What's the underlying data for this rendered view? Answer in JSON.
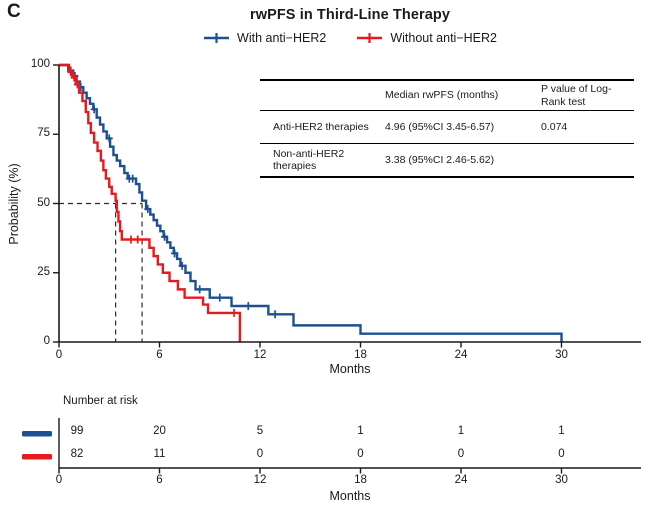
{
  "panel_label": "C",
  "title": "rwPFS in Third-Line Therapy",
  "legend": [
    {
      "label": "With anti−HER2",
      "color": "#1d5093"
    },
    {
      "label": "Without anti−HER2",
      "color": "#e8191e"
    }
  ],
  "y_axis_title": "Probability (%)",
  "x_axis_title": "Months",
  "inset_table": {
    "headers": [
      "",
      "Median rwPFS (months)",
      "P value of Log-Rank test"
    ],
    "rows": [
      [
        "Anti-HER2 therapies",
        "4.96 (95%CI 3.45-6.57)",
        "0.074"
      ],
      [
        "Non-anti-HER2 therapies",
        "3.38 (95%CI 2.46-5.62)",
        ""
      ]
    ]
  },
  "risk_table": {
    "title": "Number at risk",
    "rows": [
      {
        "name": "With anti−HER2",
        "color": "#1d5093",
        "counts": [
          "99",
          "20",
          "5",
          "1",
          "1",
          "1"
        ]
      },
      {
        "name": "Without anti−HER2",
        "color": "#e8191e",
        "counts": [
          "82",
          "11",
          "0",
          "0",
          "0",
          "0"
        ]
      }
    ]
  },
  "chart_data": {
    "type": "line",
    "subtype": "kaplan-meier-step",
    "title": "rwPFS in Third-Line Therapy",
    "xlabel": "Months",
    "ylabel": "Probability (%)",
    "xlim": [
      0,
      34.7
    ],
    "ylim": [
      0,
      100
    ],
    "xticks": [
      0,
      6,
      12,
      18,
      24,
      30
    ],
    "yticks": [
      0,
      25,
      50,
      75,
      100
    ],
    "grid": false,
    "legend_position": "top-center",
    "median_lines": {
      "y": 50,
      "x_values": [
        3.38,
        4.96
      ]
    },
    "p_value_logrank": "0.074",
    "series": [
      {
        "name": "With anti−HER2",
        "color": "#1d5093",
        "median_months": "4.96 (95%CI 3.45-6.57)",
        "steps": [
          [
            0,
            100
          ],
          [
            0.55,
            98
          ],
          [
            0.85,
            96
          ],
          [
            1.05,
            94
          ],
          [
            1.25,
            92
          ],
          [
            1.45,
            90
          ],
          [
            1.65,
            88
          ],
          [
            1.85,
            86
          ],
          [
            2.05,
            84
          ],
          [
            2.25,
            81
          ],
          [
            2.45,
            78.5
          ],
          [
            2.65,
            76
          ],
          [
            2.85,
            73.5
          ],
          [
            3.05,
            70.5
          ],
          [
            3.25,
            67.5
          ],
          [
            3.45,
            65.5
          ],
          [
            3.65,
            63.5
          ],
          [
            3.9,
            61
          ],
          [
            4.1,
            59
          ],
          [
            4.6,
            57
          ],
          [
            4.8,
            54
          ],
          [
            4.96,
            51
          ],
          [
            5.2,
            48
          ],
          [
            5.45,
            46
          ],
          [
            5.65,
            44
          ],
          [
            5.85,
            42
          ],
          [
            6.05,
            40
          ],
          [
            6.25,
            38
          ],
          [
            6.45,
            36
          ],
          [
            6.65,
            34
          ],
          [
            6.85,
            32
          ],
          [
            7.05,
            30
          ],
          [
            7.25,
            27.5
          ],
          [
            7.55,
            25
          ],
          [
            7.85,
            22
          ],
          [
            8.15,
            19
          ],
          [
            9.0,
            16
          ],
          [
            10.3,
            13
          ],
          [
            12.5,
            10
          ],
          [
            14.0,
            6
          ],
          [
            18.0,
            3
          ],
          [
            30,
            0
          ]
        ],
        "censor_marks": [
          [
            0.7,
            98
          ],
          [
            0.95,
            96
          ],
          [
            1.3,
            92
          ],
          [
            2.1,
            84
          ],
          [
            3.0,
            73.5
          ],
          [
            4.2,
            59
          ],
          [
            4.4,
            59
          ],
          [
            5.3,
            48
          ],
          [
            6.3,
            38
          ],
          [
            6.9,
            32
          ],
          [
            7.35,
            27.5
          ],
          [
            8.4,
            19
          ],
          [
            9.6,
            16
          ],
          [
            11.3,
            13
          ],
          [
            12.9,
            10
          ]
        ]
      },
      {
        "name": "Without anti−HER2",
        "color": "#e8191e",
        "median_months": "3.38 (95%CI 2.46-5.62)",
        "steps": [
          [
            0,
            100
          ],
          [
            0.6,
            97.5
          ],
          [
            0.8,
            95.5
          ],
          [
            1.0,
            93
          ],
          [
            1.2,
            90
          ],
          [
            1.4,
            87
          ],
          [
            1.6,
            83
          ],
          [
            1.75,
            79
          ],
          [
            1.9,
            75.5
          ],
          [
            2.1,
            72
          ],
          [
            2.3,
            69
          ],
          [
            2.5,
            65.5
          ],
          [
            2.65,
            62
          ],
          [
            2.8,
            59
          ],
          [
            3.0,
            56
          ],
          [
            3.15,
            53.5
          ],
          [
            3.38,
            51
          ],
          [
            3.45,
            47
          ],
          [
            3.55,
            43.5
          ],
          [
            3.65,
            40
          ],
          [
            3.75,
            37
          ],
          [
            5.4,
            34
          ],
          [
            5.65,
            31
          ],
          [
            5.9,
            28
          ],
          [
            6.2,
            25
          ],
          [
            6.6,
            22
          ],
          [
            7.1,
            19
          ],
          [
            7.5,
            16
          ],
          [
            8.6,
            13.5
          ],
          [
            8.9,
            10.5
          ],
          [
            10.8,
            0
          ]
        ],
        "censor_marks": [
          [
            0.7,
            97.5
          ],
          [
            0.9,
            95.5
          ],
          [
            1.1,
            93
          ],
          [
            4.3,
            37
          ],
          [
            4.7,
            37
          ],
          [
            10.45,
            10.5
          ]
        ]
      }
    ],
    "number_at_risk": {
      "times": [
        0,
        6,
        12,
        18,
        24,
        30
      ],
      "with_anti_her2": [
        99,
        20,
        5,
        1,
        1,
        1
      ],
      "without_anti_her2": [
        82,
        11,
        0,
        0,
        0,
        0
      ]
    }
  }
}
